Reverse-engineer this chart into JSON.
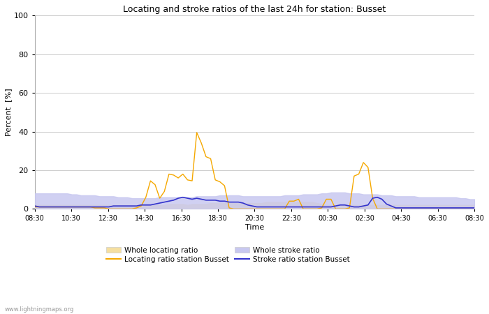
{
  "title": "Locating and stroke ratios of the last 24h for station: Busset",
  "ylabel": "Percent  [%]",
  "xlabel": "Time",
  "watermark": "www.lightningmaps.org",
  "ylim": [
    0,
    100
  ],
  "yticks": [
    0,
    20,
    40,
    60,
    80,
    100
  ],
  "xtick_labels": [
    "08:30",
    "10:30",
    "12:30",
    "14:30",
    "16:30",
    "18:30",
    "20:30",
    "22:30",
    "00:30",
    "02:30",
    "04:30",
    "06:30",
    "08:30"
  ],
  "color_locating_fill": "#f5dfa0",
  "color_stroke_fill": "#c8c8f0",
  "color_locating_line": "#f5a800",
  "color_stroke_line": "#3333cc",
  "legend_entries": [
    "Whole locating ratio",
    "Whole stroke ratio",
    "Locating ratio station Busset",
    "Stroke ratio station Busset"
  ],
  "x": [
    0,
    1,
    2,
    3,
    4,
    5,
    6,
    7,
    8,
    9,
    10,
    11,
    12,
    13,
    14,
    15,
    16,
    17,
    18,
    19,
    20,
    21,
    22,
    23,
    24,
    25,
    26,
    27,
    28,
    29,
    30,
    31,
    32,
    33,
    34,
    35,
    36,
    37,
    38,
    39,
    40,
    41,
    42,
    43,
    44,
    45,
    46,
    47,
    48,
    49,
    50,
    51,
    52,
    53,
    54,
    55,
    56,
    57,
    58,
    59,
    60,
    61,
    62,
    63,
    64,
    65,
    66,
    67,
    68,
    69,
    70,
    71,
    72,
    73,
    74,
    75,
    76,
    77,
    78,
    79,
    80,
    81,
    82,
    83,
    84,
    85,
    86,
    87,
    88,
    89,
    90,
    91,
    92,
    93,
    94,
    95
  ],
  "whole_locating": [
    2.0,
    2.0,
    2.0,
    2.0,
    2.0,
    2.0,
    2.0,
    2.0,
    2.0,
    2.0,
    2.0,
    2.0,
    2.0,
    2.0,
    2.0,
    2.0,
    2.0,
    2.0,
    2.0,
    2.0,
    2.0,
    2.0,
    2.0,
    2.0,
    2.0,
    2.0,
    2.0,
    2.0,
    2.0,
    2.5,
    2.5,
    2.5,
    2.5,
    2.0,
    2.5,
    2.5,
    2.5,
    2.5,
    3.0,
    3.0,
    3.0,
    3.0,
    3.0,
    3.0,
    3.0,
    3.0,
    3.0,
    3.0,
    3.0,
    3.0,
    3.5,
    3.5,
    3.5,
    3.5,
    3.5,
    3.5,
    3.5,
    3.5,
    3.5,
    3.5,
    3.5,
    3.0,
    2.5,
    2.0,
    2.0,
    2.0,
    2.0,
    2.0,
    2.0,
    2.0,
    2.0,
    2.0,
    2.0,
    2.0,
    2.0,
    2.0,
    2.0,
    2.0,
    2.0,
    2.0,
    2.0,
    2.0,
    2.0,
    2.0,
    2.0,
    2.0,
    2.0,
    2.0,
    2.0,
    2.0,
    2.0,
    2.0,
    2.0,
    2.0,
    2.0,
    2.0
  ],
  "whole_stroke": [
    8.0,
    8.0,
    8.0,
    8.0,
    8.0,
    8.0,
    8.0,
    8.0,
    7.5,
    7.5,
    7.0,
    7.0,
    7.0,
    7.0,
    6.5,
    6.5,
    6.5,
    6.5,
    6.0,
    6.0,
    6.0,
    5.5,
    5.5,
    5.5,
    5.5,
    5.5,
    5.5,
    6.0,
    6.0,
    6.0,
    6.0,
    6.0,
    6.0,
    6.0,
    6.0,
    6.5,
    6.5,
    6.5,
    6.5,
    6.5,
    7.0,
    7.0,
    7.0,
    7.0,
    7.0,
    6.5,
    6.5,
    6.5,
    6.5,
    6.5,
    6.5,
    6.5,
    6.5,
    6.5,
    7.0,
    7.0,
    7.0,
    7.0,
    7.5,
    7.5,
    7.5,
    7.5,
    8.0,
    8.0,
    8.5,
    8.5,
    8.5,
    8.5,
    8.0,
    8.0,
    8.0,
    7.5,
    7.5,
    7.5,
    7.5,
    7.0,
    7.0,
    7.0,
    6.5,
    6.5,
    6.5,
    6.5,
    6.5,
    6.0,
    6.0,
    6.0,
    6.0,
    6.0,
    6.0,
    6.0,
    6.0,
    6.0,
    5.5,
    5.5,
    5.0,
    5.0
  ],
  "locating_station": [
    1.0,
    1.0,
    1.0,
    1.0,
    1.0,
    1.0,
    1.0,
    1.0,
    1.0,
    1.0,
    1.0,
    1.0,
    1.0,
    0.5,
    0.5,
    0.5,
    0.0,
    0.0,
    0.0,
    0.0,
    0.0,
    0.0,
    0.5,
    1.5,
    6.0,
    14.5,
    12.5,
    5.5,
    9.0,
    18.0,
    17.5,
    16.0,
    18.0,
    15.0,
    14.5,
    39.5,
    34.0,
    27.0,
    26.0,
    15.0,
    14.0,
    12.0,
    0.5,
    0.0,
    0.0,
    0.0,
    0.0,
    0.0,
    0.0,
    0.0,
    0.0,
    0.0,
    0.0,
    0.0,
    0.0,
    4.0,
    4.0,
    5.0,
    0.0,
    0.0,
    0.0,
    0.0,
    0.5,
    5.0,
    5.0,
    0.0,
    0.0,
    0.0,
    0.5,
    17.0,
    18.0,
    24.0,
    21.5,
    5.5,
    0.0,
    0.0,
    0.0,
    0.0,
    0.0,
    0.0,
    0.0,
    0.0,
    0.0,
    0.0,
    0.0,
    0.0,
    0.0,
    0.0,
    0.0,
    0.0,
    0.0,
    0.0,
    0.0,
    0.0,
    0.0,
    0.0
  ],
  "stroke_station": [
    1.5,
    1.0,
    1.0,
    1.0,
    1.0,
    1.0,
    1.0,
    1.0,
    1.0,
    1.0,
    1.0,
    1.0,
    1.0,
    1.0,
    1.0,
    1.0,
    1.0,
    1.5,
    1.5,
    1.5,
    1.5,
    1.5,
    1.5,
    2.0,
    2.0,
    2.0,
    2.5,
    3.0,
    3.5,
    4.0,
    4.5,
    5.5,
    6.0,
    5.5,
    5.0,
    5.5,
    5.0,
    4.5,
    4.5,
    4.5,
    4.0,
    4.0,
    3.5,
    3.5,
    3.5,
    3.0,
    2.0,
    1.5,
    1.0,
    1.0,
    1.0,
    1.0,
    1.0,
    1.0,
    1.0,
    1.0,
    1.0,
    1.0,
    1.0,
    1.0,
    1.0,
    1.0,
    1.0,
    1.0,
    1.0,
    1.5,
    2.0,
    2.0,
    1.5,
    1.0,
    1.0,
    1.5,
    2.0,
    5.5,
    6.0,
    5.0,
    2.5,
    1.5,
    0.5,
    0.5,
    0.5,
    0.5,
    0.5,
    0.5,
    0.5,
    0.5,
    0.5,
    0.5,
    0.5,
    0.5,
    0.5,
    0.5,
    0.5,
    0.5,
    0.5,
    0.5
  ]
}
